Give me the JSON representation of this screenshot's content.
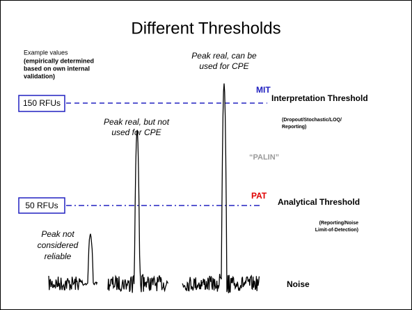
{
  "title": "Different Thresholds",
  "example": {
    "heading": "Example values",
    "lines": [
      "(empirically determined",
      "based on own internal",
      "validation)"
    ]
  },
  "interpretation": {
    "box": "150 RFUs",
    "abbr": "MIT",
    "label": "Interpretation Threshold",
    "note": [
      "(Dropout/Stochastic/LOQ/",
      "Reporting)"
    ]
  },
  "palin": "“PALIN”",
  "analytical": {
    "box": "50 RFUs",
    "abbr": "PAT",
    "label": "Analytical Threshold",
    "note": [
      "(Reporting/Noise",
      "Limit-of-Detection)"
    ]
  },
  "peaks": [
    {
      "lines": [
        "Peak not",
        "considered",
        "reliable"
      ]
    },
    {
      "lines": [
        "Peak real, but not",
        "used for CPE"
      ]
    },
    {
      "lines": [
        "Peak real, can be",
        "used for CPE"
      ]
    }
  ],
  "noise": "Noise"
}
